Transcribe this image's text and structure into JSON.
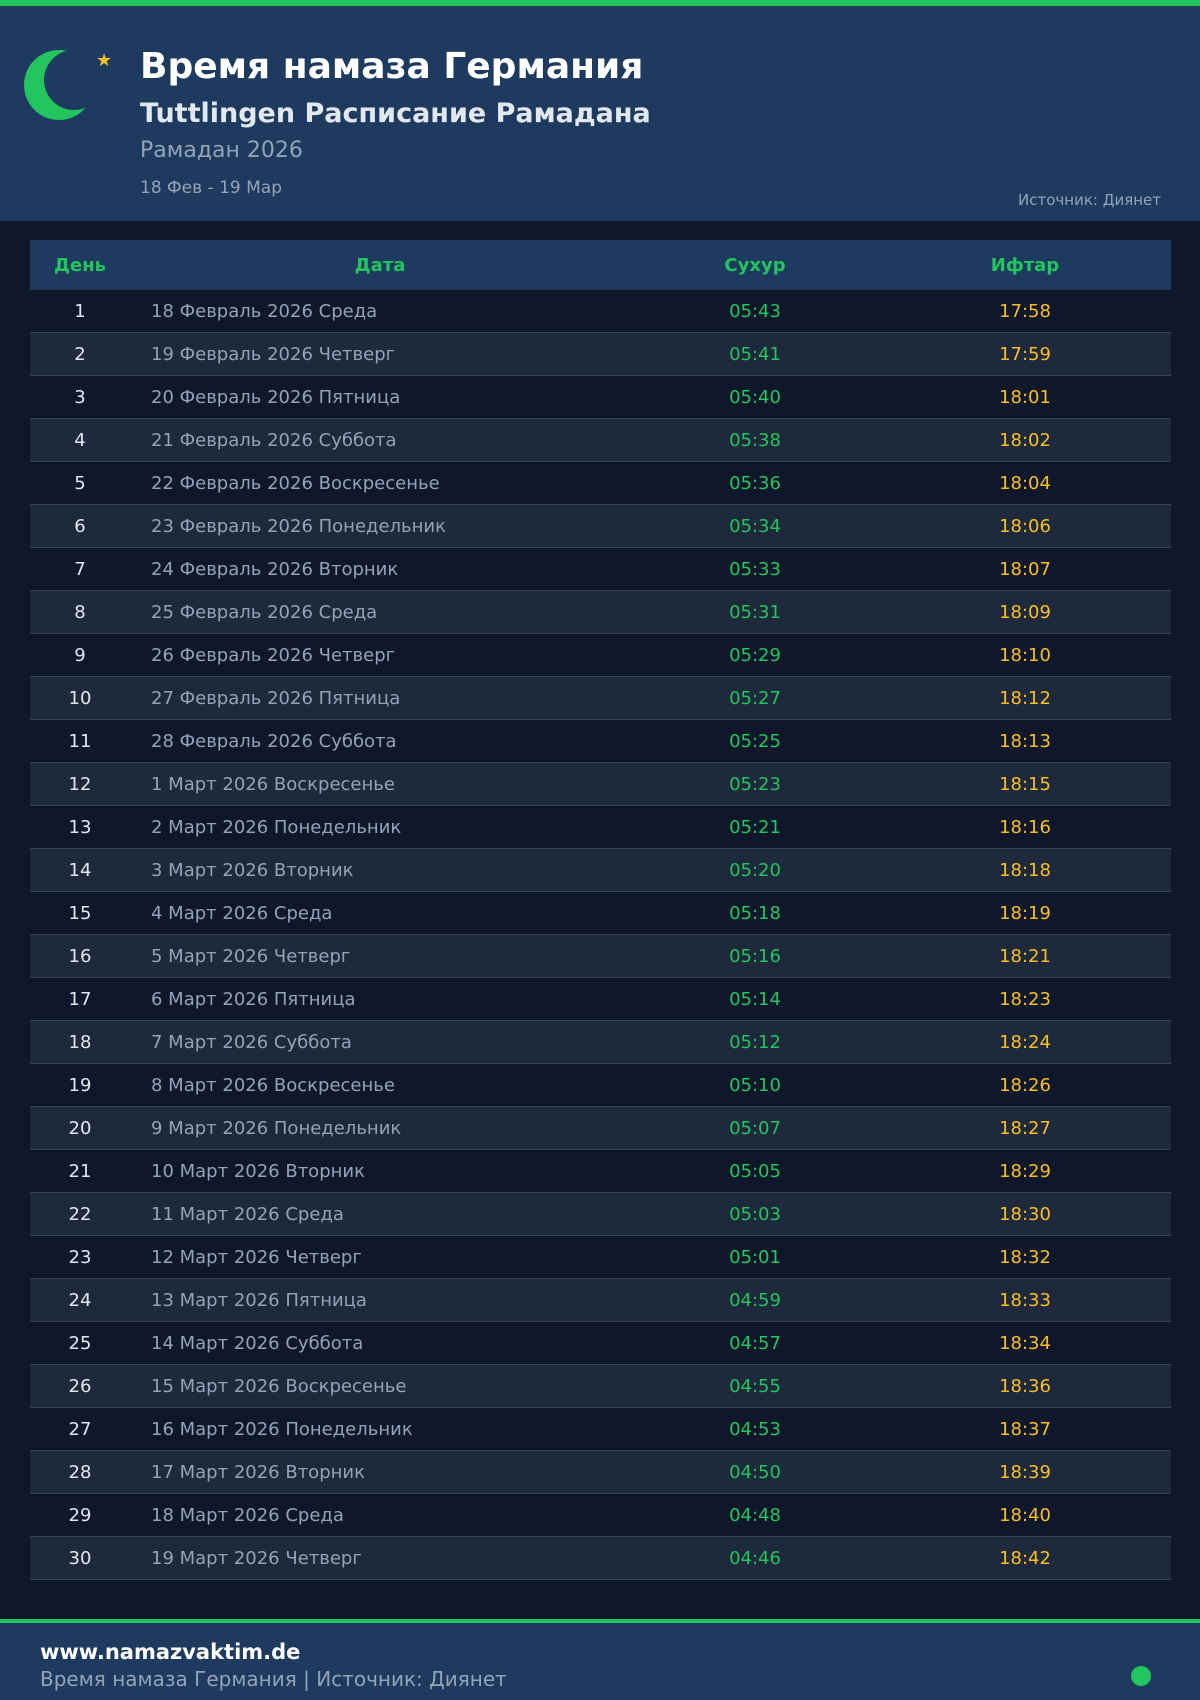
{
  "header": {
    "title": "Время намаза Германия",
    "subtitle": "Tuttlingen Расписание Рамадана",
    "year": "Рамадан 2026",
    "range": "18 Фев - 19 Мар",
    "source": "Источник: Диянет"
  },
  "table": {
    "headers": [
      "День",
      "Дата",
      "Сухур",
      "Ифтар"
    ],
    "rows": [
      [
        "1",
        "18 Февраль 2026 Среда",
        "05:43",
        "17:58"
      ],
      [
        "2",
        "19 Февраль 2026 Четверг",
        "05:41",
        "17:59"
      ],
      [
        "3",
        "20 Февраль 2026 Пятница",
        "05:40",
        "18:01"
      ],
      [
        "4",
        "21 Февраль 2026 Суббота",
        "05:38",
        "18:02"
      ],
      [
        "5",
        "22 Февраль 2026 Воскресенье",
        "05:36",
        "18:04"
      ],
      [
        "6",
        "23 Февраль 2026 Понедельник",
        "05:34",
        "18:06"
      ],
      [
        "7",
        "24 Февраль 2026 Вторник",
        "05:33",
        "18:07"
      ],
      [
        "8",
        "25 Февраль 2026 Среда",
        "05:31",
        "18:09"
      ],
      [
        "9",
        "26 Февраль 2026 Четверг",
        "05:29",
        "18:10"
      ],
      [
        "10",
        "27 Февраль 2026 Пятница",
        "05:27",
        "18:12"
      ],
      [
        "11",
        "28 Февраль 2026 Суббота",
        "05:25",
        "18:13"
      ],
      [
        "12",
        "1 Март 2026 Воскресенье",
        "05:23",
        "18:15"
      ],
      [
        "13",
        "2 Март 2026 Понедельник",
        "05:21",
        "18:16"
      ],
      [
        "14",
        "3 Март 2026 Вторник",
        "05:20",
        "18:18"
      ],
      [
        "15",
        "4 Март 2026 Среда",
        "05:18",
        "18:19"
      ],
      [
        "16",
        "5 Март 2026 Четверг",
        "05:16",
        "18:21"
      ],
      [
        "17",
        "6 Март 2026 Пятница",
        "05:14",
        "18:23"
      ],
      [
        "18",
        "7 Март 2026 Суббота",
        "05:12",
        "18:24"
      ],
      [
        "19",
        "8 Март 2026 Воскресенье",
        "05:10",
        "18:26"
      ],
      [
        "20",
        "9 Март 2026 Понедельник",
        "05:07",
        "18:27"
      ],
      [
        "21",
        "10 Март 2026 Вторник",
        "05:05",
        "18:29"
      ],
      [
        "22",
        "11 Март 2026 Среда",
        "05:03",
        "18:30"
      ],
      [
        "23",
        "12 Март 2026 Четверг",
        "05:01",
        "18:32"
      ],
      [
        "24",
        "13 Март 2026 Пятница",
        "04:59",
        "18:33"
      ],
      [
        "25",
        "14 Март 2026 Суббота",
        "04:57",
        "18:34"
      ],
      [
        "26",
        "15 Март 2026 Воскресенье",
        "04:55",
        "18:36"
      ],
      [
        "27",
        "16 Март 2026 Понедельник",
        "04:53",
        "18:37"
      ],
      [
        "28",
        "17 Март 2026 Вторник",
        "04:50",
        "18:39"
      ],
      [
        "29",
        "18 Март 2026 Среда",
        "04:48",
        "18:40"
      ],
      [
        "30",
        "19 Март 2026 Четверг",
        "04:46",
        "18:42"
      ]
    ]
  },
  "footer": {
    "site": "www.namazvaktim.de",
    "text": "Время намаза Германия | Источник: Диянет"
  },
  "colors": {
    "accent": "#22c55e",
    "iftar": "#fbbf24",
    "background": "#0f172a",
    "header": "#1e3a5f"
  }
}
